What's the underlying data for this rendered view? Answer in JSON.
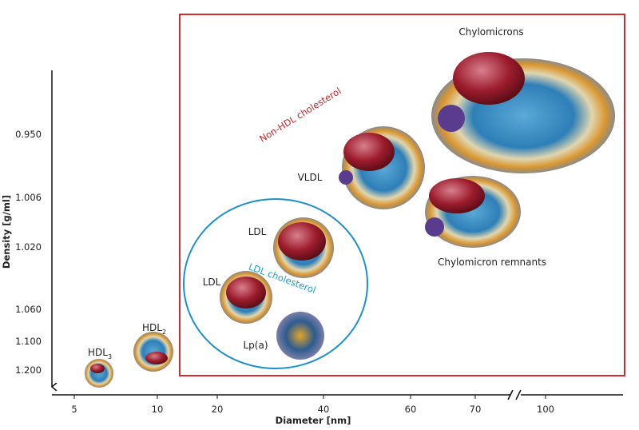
{
  "y_axis": {
    "label": "Density [g/ml]",
    "ticks": [
      "0.950",
      "1.006",
      "1.020",
      "1.060",
      "1.100",
      "1.200"
    ]
  },
  "x_axis": {
    "label": "Diameter [nm]",
    "ticks": [
      "5",
      "10",
      "20",
      "40",
      "60",
      "70",
      "100"
    ]
  },
  "groups": [
    {
      "label": "Non-HDL cholesterol"
    },
    {
      "label": "LDL cholesterol"
    }
  ],
  "particles": [
    {
      "label": "Chylomicrons"
    },
    {
      "label": "VLDL"
    },
    {
      "label": "Chylomicron remnants"
    },
    {
      "label": "LDL"
    },
    {
      "label": "LDL"
    },
    {
      "label": "Lp(a)"
    },
    {
      "label": "HDL",
      "subscript": "2"
    },
    {
      "label": "HDL",
      "subscript": "3"
    }
  ]
}
